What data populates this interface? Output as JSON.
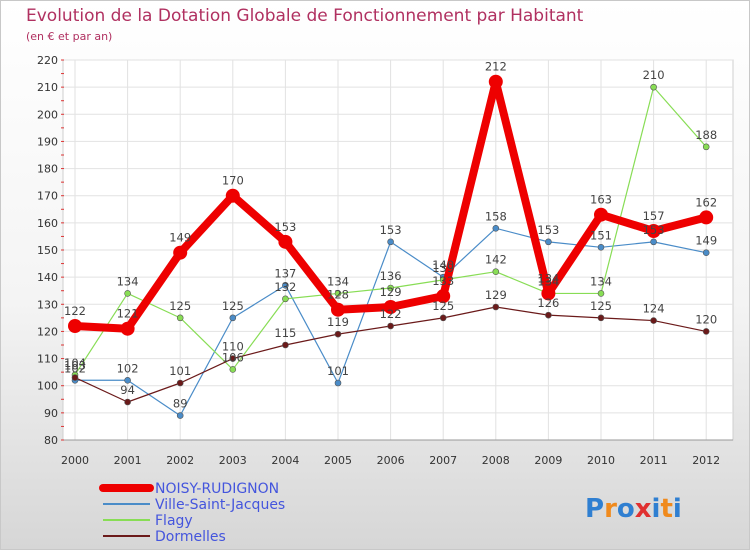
{
  "chart_data": {
    "type": "line",
    "title": "Evolution de la Dotation Globale de Fonctionnement par Habitant",
    "subtitle": "(en € et par an)",
    "xlabel": "",
    "ylabel": "",
    "categories": [
      "2000",
      "2001",
      "2002",
      "2003",
      "2004",
      "2005",
      "2006",
      "2007",
      "2008",
      "2009",
      "2010",
      "2011",
      "2012"
    ],
    "ylim": [
      80,
      220
    ],
    "ytick_step": 10,
    "grid": true,
    "legend_position": "bottom-left",
    "series": [
      {
        "name": "NOISY-RUDIGNON",
        "color": "#ee0000",
        "values": [
          122,
          121,
          149,
          170,
          153,
          128,
          129,
          133,
          212,
          134,
          163,
          157,
          162
        ]
      },
      {
        "name": "Ville-Saint-Jacques",
        "color": "#4a8cc8",
        "values": [
          102,
          102,
          89,
          125,
          137,
          101,
          153,
          140,
          158,
          153,
          151,
          153,
          149
        ]
      },
      {
        "name": "Flagy",
        "color": "#88dd55",
        "values": [
          104,
          134,
          125,
          106,
          132,
          134,
          136,
          139,
          142,
          134,
          134,
          210,
          188
        ]
      },
      {
        "name": "Dormelles",
        "color": "#6b1a1a",
        "values": [
          103,
          94,
          101,
          110,
          115,
          119,
          122,
          125,
          129,
          126,
          125,
          124,
          120
        ]
      }
    ]
  },
  "brand": {
    "name": "Proxiti",
    "letters": [
      "P",
      "r",
      "o",
      "x",
      "i",
      "t",
      "i"
    ]
  },
  "colors": {
    "title": "#b03060",
    "legend_text": "#4455dd",
    "grid": "#e2e2e2",
    "frame": "#cfcfcf",
    "brand_letters": [
      "#2f7fd1",
      "#f08a1c",
      "#2f7fd1",
      "#e03030",
      "#2f7fd1",
      "#f08a1c",
      "#2f7fd1"
    ]
  }
}
